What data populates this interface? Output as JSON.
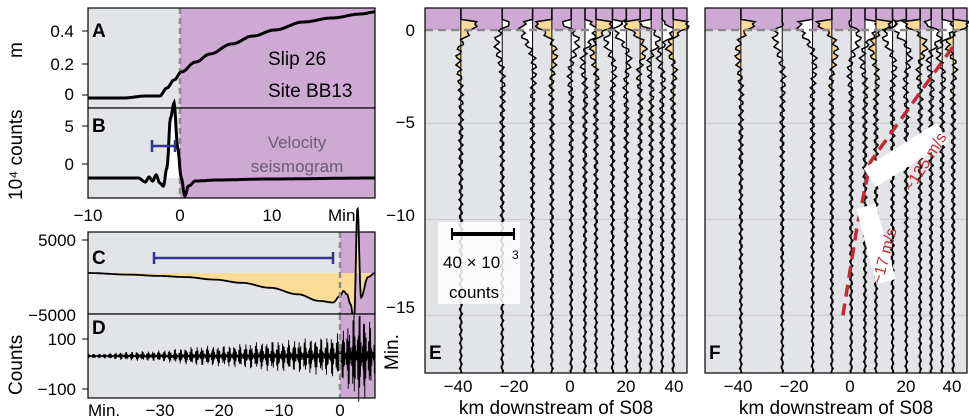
{
  "colors": {
    "pre": "#e3e4e7",
    "post": "#cda9d4",
    "fill": "#fbdc96",
    "marker": "#2e3596",
    "dashed": "#8a8a8a",
    "speed": "#c22a35"
  },
  "panels": {
    "A": {
      "letter": "A",
      "ylabel": "m",
      "yticks": [
        "0.4",
        "0.2",
        "0"
      ],
      "annotation_1": "Slip 26",
      "annotation_2": "Site BB13"
    },
    "B": {
      "letter": "B",
      "ylabel": "10⁴ counts",
      "yticks": [
        "5",
        "0"
      ],
      "xticks": [
        "−10",
        "0",
        "10"
      ],
      "xunit": "Min.",
      "annotation_1": "Velocity",
      "annotation_2": "seismogram"
    },
    "C": {
      "letter": "C",
      "yticks": [
        "5000",
        "−5000"
      ]
    },
    "D": {
      "letter": "D",
      "ylabel": "Counts",
      "yticks": [
        "100",
        "−100"
      ],
      "xunit": "Min.",
      "xticks": [
        "−30",
        "−20",
        "−10",
        "0"
      ]
    },
    "E": {
      "letter": "E",
      "ylabel": "Min.",
      "yticks": [
        "0",
        "−5",
        "−10",
        "−15"
      ],
      "xticks": [
        "−40",
        "−20",
        "0",
        "20",
        "40"
      ],
      "xlabel": "km downstream of S08",
      "scale_value": "40 × 10",
      "scale_exp": "3",
      "scale_unit": "counts"
    },
    "F": {
      "letter": "F",
      "xticks": [
        "−40",
        "−20",
        "0",
        "20",
        "40"
      ],
      "xlabel": "km downstream of S08",
      "speed_slow": "~17 m/s",
      "speed_fast": "~125 m/s"
    }
  },
  "chart_data": [
    {
      "panel": "A",
      "type": "line",
      "xlim": [
        -10,
        30
      ],
      "ylim": [
        -0.05,
        0.45
      ],
      "x": [
        -10,
        -5,
        -2,
        0,
        1,
        2,
        3,
        5,
        7,
        10,
        13,
        16,
        20,
        24,
        28,
        30
      ],
      "y": [
        0.0,
        0.0,
        0.01,
        0.01,
        0.05,
        0.09,
        0.13,
        0.18,
        0.22,
        0.27,
        0.31,
        0.34,
        0.38,
        0.4,
        0.42,
        0.43
      ]
    },
    {
      "panel": "B",
      "type": "line",
      "xlim": [
        -10,
        30
      ],
      "ylim": [
        -2,
        7
      ],
      "x": [
        -10,
        -5,
        -3,
        -2,
        -1.5,
        -1,
        -0.5,
        0,
        0.5,
        1,
        1.5,
        2,
        2.5,
        3,
        3.5,
        4,
        5,
        8,
        15,
        30
      ],
      "y": [
        0,
        0,
        0,
        -0.4,
        0.1,
        -0.3,
        0.3,
        -0.5,
        -0.8,
        1,
        6,
        7.5,
        3,
        0,
        -1.8,
        -0.8,
        -0.3,
        -0.2,
        -0.1,
        0
      ]
    },
    {
      "panel": "C",
      "type": "area",
      "xlim": [
        -38,
        3
      ],
      "ylim": [
        -5000,
        5000
      ],
      "x": [
        -38,
        -32,
        -28,
        -24,
        -20,
        -16,
        -12,
        -8,
        -5,
        -3,
        -2,
        -1.5,
        -1,
        -0.5,
        0,
        0.5,
        1,
        2,
        3
      ],
      "y": [
        0,
        -200,
        -350,
        -500,
        -800,
        -1200,
        -1800,
        -2600,
        -3400,
        -3600,
        -2800,
        -2200,
        -2600,
        -3800,
        -6000,
        8000,
        -3000,
        -500,
        0
      ]
    },
    {
      "panel": "D",
      "type": "line",
      "xlim": [
        -38,
        3
      ],
      "ylim": [
        -100,
        100
      ],
      "x": [
        -38,
        -30,
        -20,
        -10,
        -5,
        -2,
        -1,
        0,
        1,
        2,
        3
      ],
      "y": [
        5,
        12,
        25,
        38,
        45,
        55,
        80,
        110,
        120,
        90,
        60
      ]
    },
    {
      "panel": "E",
      "type": "line",
      "xlim": [
        -50,
        45
      ],
      "ylim": [
        -18,
        1
      ],
      "x": [
        -37,
        -22,
        -11,
        -4,
        3,
        8,
        12,
        18,
        23,
        28,
        32,
        36,
        40
      ],
      "y": [
        0.3,
        0.3,
        0.3,
        0.3,
        0.3,
        0.3,
        0.3,
        0.3,
        0.3,
        0.3,
        0.3,
        0.3,
        0.3
      ]
    },
    {
      "panel": "F",
      "type": "line",
      "xlim": [
        -50,
        45
      ],
      "ylim": [
        -18,
        1
      ],
      "x": [
        0,
        5,
        10,
        20,
        30,
        40
      ],
      "y": [
        -15,
        -10.5,
        -7,
        -5,
        -3,
        -1
      ]
    }
  ]
}
